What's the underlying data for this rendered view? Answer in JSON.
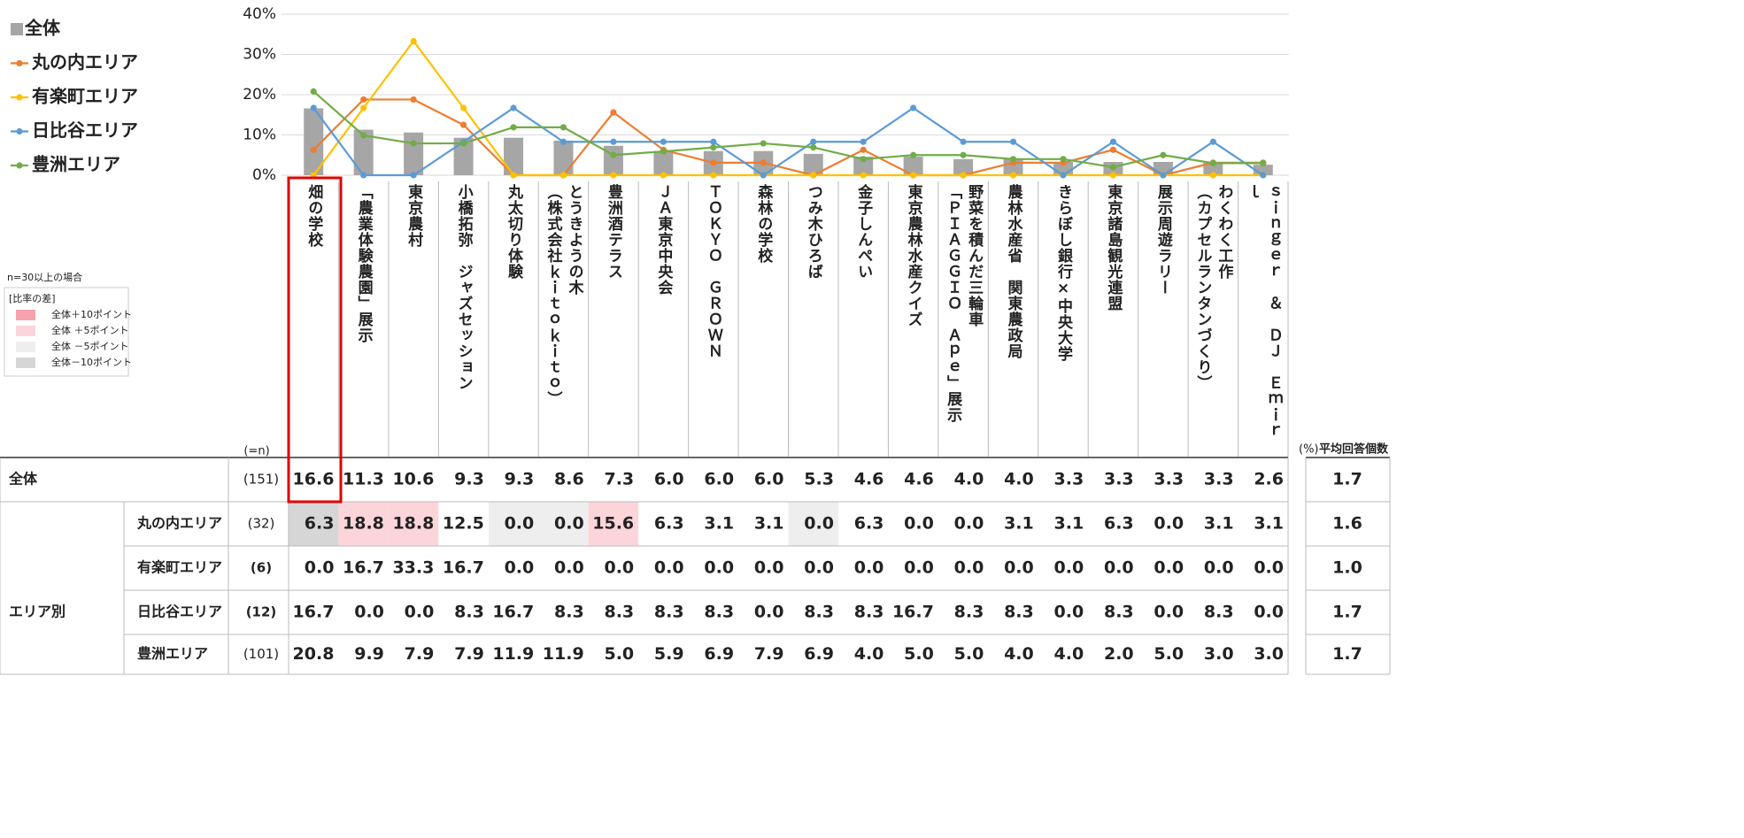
{
  "chart_data": {
    "type": "bar",
    "categories": [
      "畑の学校",
      "「農業体験農園」展示",
      "東京農村",
      "小橋拓弥　ジャズセッション",
      "丸太切り体験",
      "とうきようの木\n（株式会社ｋｉｔｏｋｉｔｏ）",
      "豊洲酒テラス",
      "ＪＡ東京中央会",
      "ＴＯＫＹＯ　ＧＲＯＷＮ",
      "森林の学校",
      "つみ木ひろば",
      "金子しんぺい",
      "東京農林水産クイズ",
      "野菜を積んだ三輪車\n「ＰＩＡＧＧＩＯ　Ａｐｅ」展示",
      "農林水産省　関東農政局",
      "きらぼし銀行×中央大学",
      "東京諸島観光連盟",
      "展示周遊ラリー",
      "わくわく工作\n（カプセルランタンづくり）",
      "ｓｉｎｇｅｒ　＆　ＤＪ　Ｅｍｉｒｌ"
    ],
    "ylim": [
      0,
      40
    ],
    "yticks": [
      {
        "value": 0,
        "label": "0%"
      },
      {
        "value": 10,
        "label": "10%"
      },
      {
        "value": 20,
        "label": "20%"
      },
      {
        "value": 30,
        "label": "30%"
      },
      {
        "value": 40,
        "label": "40%"
      }
    ],
    "grid": true,
    "series": [
      {
        "name": "全体",
        "type": "bar",
        "color": "#a6a6a6",
        "values": [
          16.6,
          11.3,
          10.6,
          9.3,
          9.3,
          8.6,
          7.3,
          6.0,
          6.0,
          6.0,
          5.3,
          4.6,
          4.6,
          4.0,
          4.0,
          3.3,
          3.3,
          3.3,
          3.3,
          2.6
        ],
        "value_labels": [
          "16.6",
          "11.3",
          "10.6",
          "9.3",
          "9.3",
          "8.6",
          "7.3",
          "6.0",
          "6.0",
          "6.0",
          "5.3",
          "4.6",
          "4.6",
          "4.0",
          "4.0",
          "3.3",
          "3.3",
          "3.3",
          "3.3",
          "2.6"
        ]
      },
      {
        "name": "丸の内エリア",
        "type": "line",
        "color": "#ed7d31",
        "values": [
          6.3,
          18.8,
          18.8,
          12.5,
          0.0,
          0.0,
          15.6,
          6.3,
          3.1,
          3.1,
          0.0,
          6.3,
          0.0,
          0.0,
          3.1,
          3.1,
          6.3,
          0.0,
          3.1,
          3.1
        ],
        "value_labels": [
          "6.3",
          "18.8",
          "18.8",
          "12.5",
          "0.0",
          "0.0",
          "15.6",
          "6.3",
          "3.1",
          "3.1",
          "0.0",
          "6.3",
          "0.0",
          "0.0",
          "3.1",
          "3.1",
          "6.3",
          "0.0",
          "3.1",
          "3.1"
        ]
      },
      {
        "name": "有楽町エリア",
        "type": "line",
        "color": "#ffc000",
        "values": [
          0.0,
          16.7,
          33.3,
          16.7,
          0.0,
          0.0,
          0.0,
          0.0,
          0.0,
          0.0,
          0.0,
          0.0,
          0.0,
          0.0,
          0.0,
          0.0,
          0.0,
          0.0,
          0.0,
          0.0
        ],
        "value_labels": [
          "0.0",
          "16.7",
          "33.3",
          "16.7",
          "0.0",
          "0.0",
          "0.0",
          "0.0",
          "0.0",
          "0.0",
          "0.0",
          "0.0",
          "0.0",
          "0.0",
          "0.0",
          "0.0",
          "0.0",
          "0.0",
          "0.0",
          "0.0"
        ]
      },
      {
        "name": "日比谷エリア",
        "type": "line",
        "color": "#5b9bd5",
        "values": [
          16.7,
          0.0,
          0.0,
          8.3,
          16.7,
          8.3,
          8.3,
          8.3,
          8.3,
          0.0,
          8.3,
          8.3,
          16.7,
          8.3,
          8.3,
          0.0,
          8.3,
          0.0,
          8.3,
          0.0
        ],
        "value_labels": [
          "16.7",
          "0.0",
          "0.0",
          "8.3",
          "16.7",
          "8.3",
          "8.3",
          "8.3",
          "8.3",
          "0.0",
          "8.3",
          "8.3",
          "16.7",
          "8.3",
          "8.3",
          "0.0",
          "8.3",
          "0.0",
          "8.3",
          "0.0"
        ]
      },
      {
        "name": "豊洲エリア",
        "type": "line",
        "color": "#70ad47",
        "values": [
          20.8,
          9.9,
          7.9,
          7.9,
          11.9,
          11.9,
          5.0,
          5.9,
          6.9,
          7.9,
          6.9,
          4.0,
          5.0,
          5.0,
          4.0,
          4.0,
          2.0,
          5.0,
          3.0,
          3.0
        ],
        "value_labels": [
          "20.8",
          "9.9",
          "7.9",
          "7.9",
          "11.9",
          "11.9",
          "5.0",
          "5.9",
          "6.9",
          "7.9",
          "6.9",
          "4.0",
          "5.0",
          "5.0",
          "4.0",
          "4.0",
          "2.0",
          "5.0",
          "3.0",
          "3.0"
        ]
      }
    ]
  },
  "table": {
    "n_header": "(=n)",
    "unit": "(%)",
    "avg_header": "平均回答個数",
    "group_label": "エリア別",
    "rows": [
      {
        "n": 151,
        "n_label": "(151)",
        "avg": "1.7"
      },
      {
        "n": 32,
        "n_label": "(32)",
        "avg": "1.6"
      },
      {
        "n": 6,
        "n_label": "(6)",
        "avg": "1.0"
      },
      {
        "n": 12,
        "n_label": "(12)",
        "avg": "1.7"
      },
      {
        "n": 101,
        "n_label": "(101)",
        "avg": "1.7"
      }
    ]
  },
  "diff_legend": {
    "note": "n=30以上の場合",
    "min_n": 30,
    "title": "[比率の差]",
    "items": [
      {
        "label": "全体＋10ポイント",
        "color": "#f5a3ad",
        "threshold": 10
      },
      {
        "label": "全体 ＋5ポイント",
        "color": "#fbd5da",
        "threshold": 5
      },
      {
        "label": "全体 －5ポイント",
        "color": "#eeeeee",
        "threshold": -5
      },
      {
        "label": "全体－10ポイント",
        "color": "#d6d6d6",
        "threshold": -10
      }
    ]
  }
}
